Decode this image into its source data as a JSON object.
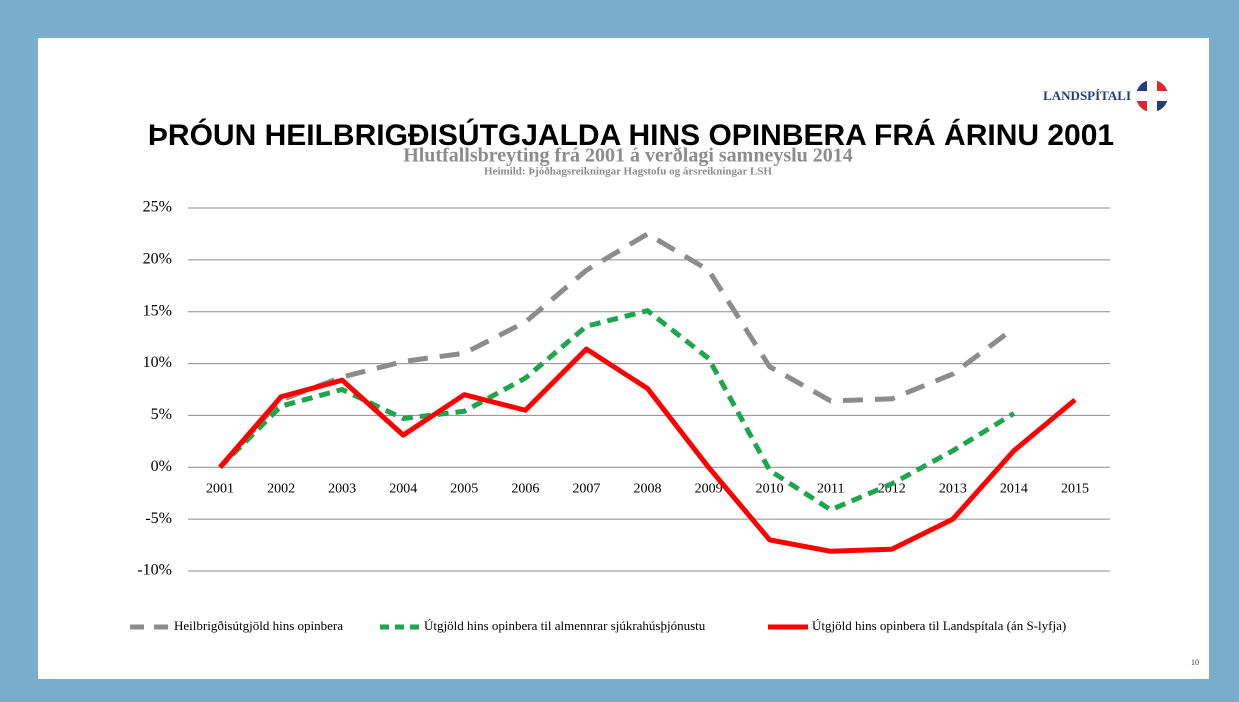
{
  "logo": "LANDSPÍTALI",
  "page_number": "10",
  "chart_data": {
    "type": "line",
    "title": "ÞRÓUN HEILBRIGÐISÚTGJALDA HINS OPINBERA FRÁ ÁRINU 2001",
    "subtitle": "Hlutfallsbreyting  frá 2001 á verðlagi samneyslu 2014",
    "source": "Heimild: Þjóðhagsreikningar Hagstofu og ársreikningar LSH",
    "categories": [
      "2001",
      "2002",
      "2003",
      "2004",
      "2005",
      "2006",
      "2007",
      "2008",
      "2009",
      "2010",
      "2011",
      "2012",
      "2013",
      "2014",
      "2015"
    ],
    "ylim": [
      -10,
      25
    ],
    "yticks": [
      {
        "value": -10,
        "label": "-10%"
      },
      {
        "value": -5,
        "label": "-5%"
      },
      {
        "value": 0,
        "label": "0%"
      },
      {
        "value": 5,
        "label": "5%"
      },
      {
        "value": 10,
        "label": "10%"
      },
      {
        "value": 15,
        "label": "15%"
      },
      {
        "value": 20,
        "label": "20%"
      },
      {
        "value": 25,
        "label": "25%"
      }
    ],
    "grid": true,
    "legend": "bottom",
    "series": [
      {
        "name": "Heilbrigðisútgjöld hins opinbera",
        "color": "#8c8c8c",
        "dash": "dashed",
        "values": [
          0,
          6.5,
          8.7,
          10.2,
          11,
          14,
          19,
          22.5,
          19,
          9.7,
          6.4,
          6.6,
          9,
          13.4,
          null
        ]
      },
      {
        "name": "Útgjöld hins opinbera til almennrar sjúkrahúsþjónustu",
        "color": "#1ea64a",
        "dash": "dotted",
        "values": [
          0,
          5.9,
          7.5,
          4.7,
          5.4,
          8.6,
          13.6,
          15.1,
          10.5,
          -0.3,
          -4.1,
          -1.6,
          1.6,
          5.2,
          null
        ]
      },
      {
        "name": "Útgjöld hins opinbera til Landspítala (án S-lyfja)",
        "color": "#ff0000",
        "dash": "solid",
        "values": [
          0,
          6.8,
          8.4,
          3.1,
          7.0,
          5.5,
          11.4,
          7.6,
          0,
          -7,
          -8.1,
          -7.9,
          -5,
          1.6,
          6.5
        ]
      }
    ]
  }
}
